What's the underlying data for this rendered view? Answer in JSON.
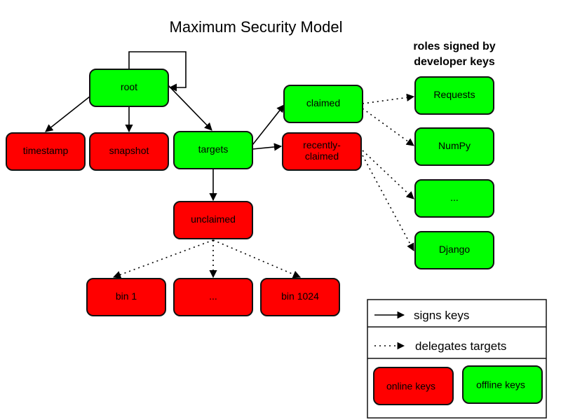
{
  "title": "Maximum Security Model",
  "roles_heading": [
    "roles signed by",
    "developer keys"
  ],
  "colors": {
    "online": "#ff0000",
    "offline": "#00ff00"
  },
  "nodes": [
    {
      "id": "root",
      "label": [
        "root"
      ],
      "type": "offline"
    },
    {
      "id": "timestamp",
      "label": [
        "timestamp"
      ],
      "type": "online"
    },
    {
      "id": "snapshot",
      "label": [
        "snapshot"
      ],
      "type": "online"
    },
    {
      "id": "targets",
      "label": [
        "targets"
      ],
      "type": "offline"
    },
    {
      "id": "claimed",
      "label": [
        "claimed"
      ],
      "type": "offline"
    },
    {
      "id": "recently-claimed",
      "label": [
        "recently-",
        "claimed"
      ],
      "type": "online"
    },
    {
      "id": "unclaimed",
      "label": [
        "unclaimed"
      ],
      "type": "online"
    },
    {
      "id": "bin-1",
      "label": [
        "bin 1"
      ],
      "type": "online"
    },
    {
      "id": "bin-ellipsis",
      "label": [
        "..."
      ],
      "type": "online"
    },
    {
      "id": "bin-1024",
      "label": [
        "bin 1024"
      ],
      "type": "online"
    },
    {
      "id": "requests",
      "label": [
        "Requests"
      ],
      "type": "offline"
    },
    {
      "id": "numpy",
      "label": [
        "NumPy"
      ],
      "type": "offline"
    },
    {
      "id": "dev-ellipsis",
      "label": [
        "..."
      ],
      "type": "offline"
    },
    {
      "id": "django",
      "label": [
        "Django"
      ],
      "type": "offline"
    }
  ],
  "edges": [
    {
      "from": "root",
      "to": "root",
      "style": "signs"
    },
    {
      "from": "root",
      "to": "timestamp",
      "style": "signs"
    },
    {
      "from": "root",
      "to": "snapshot",
      "style": "signs"
    },
    {
      "from": "root",
      "to": "targets",
      "style": "signs"
    },
    {
      "from": "targets",
      "to": "claimed",
      "style": "signs"
    },
    {
      "from": "targets",
      "to": "recently-claimed",
      "style": "signs"
    },
    {
      "from": "targets",
      "to": "unclaimed",
      "style": "signs"
    },
    {
      "from": "unclaimed",
      "to": "bin-1",
      "style": "delegates"
    },
    {
      "from": "unclaimed",
      "to": "bin-ellipsis",
      "style": "delegates"
    },
    {
      "from": "unclaimed",
      "to": "bin-1024",
      "style": "delegates"
    },
    {
      "from": "claimed",
      "to": "requests",
      "style": "delegates"
    },
    {
      "from": "claimed",
      "to": "numpy",
      "style": "delegates"
    },
    {
      "from": "recently-claimed",
      "to": "dev-ellipsis",
      "style": "delegates"
    },
    {
      "from": "recently-claimed",
      "to": "django",
      "style": "delegates"
    }
  ],
  "legend": {
    "signs": "signs keys",
    "delegates": "delegates targets",
    "online": "online keys",
    "offline": "offline keys"
  }
}
